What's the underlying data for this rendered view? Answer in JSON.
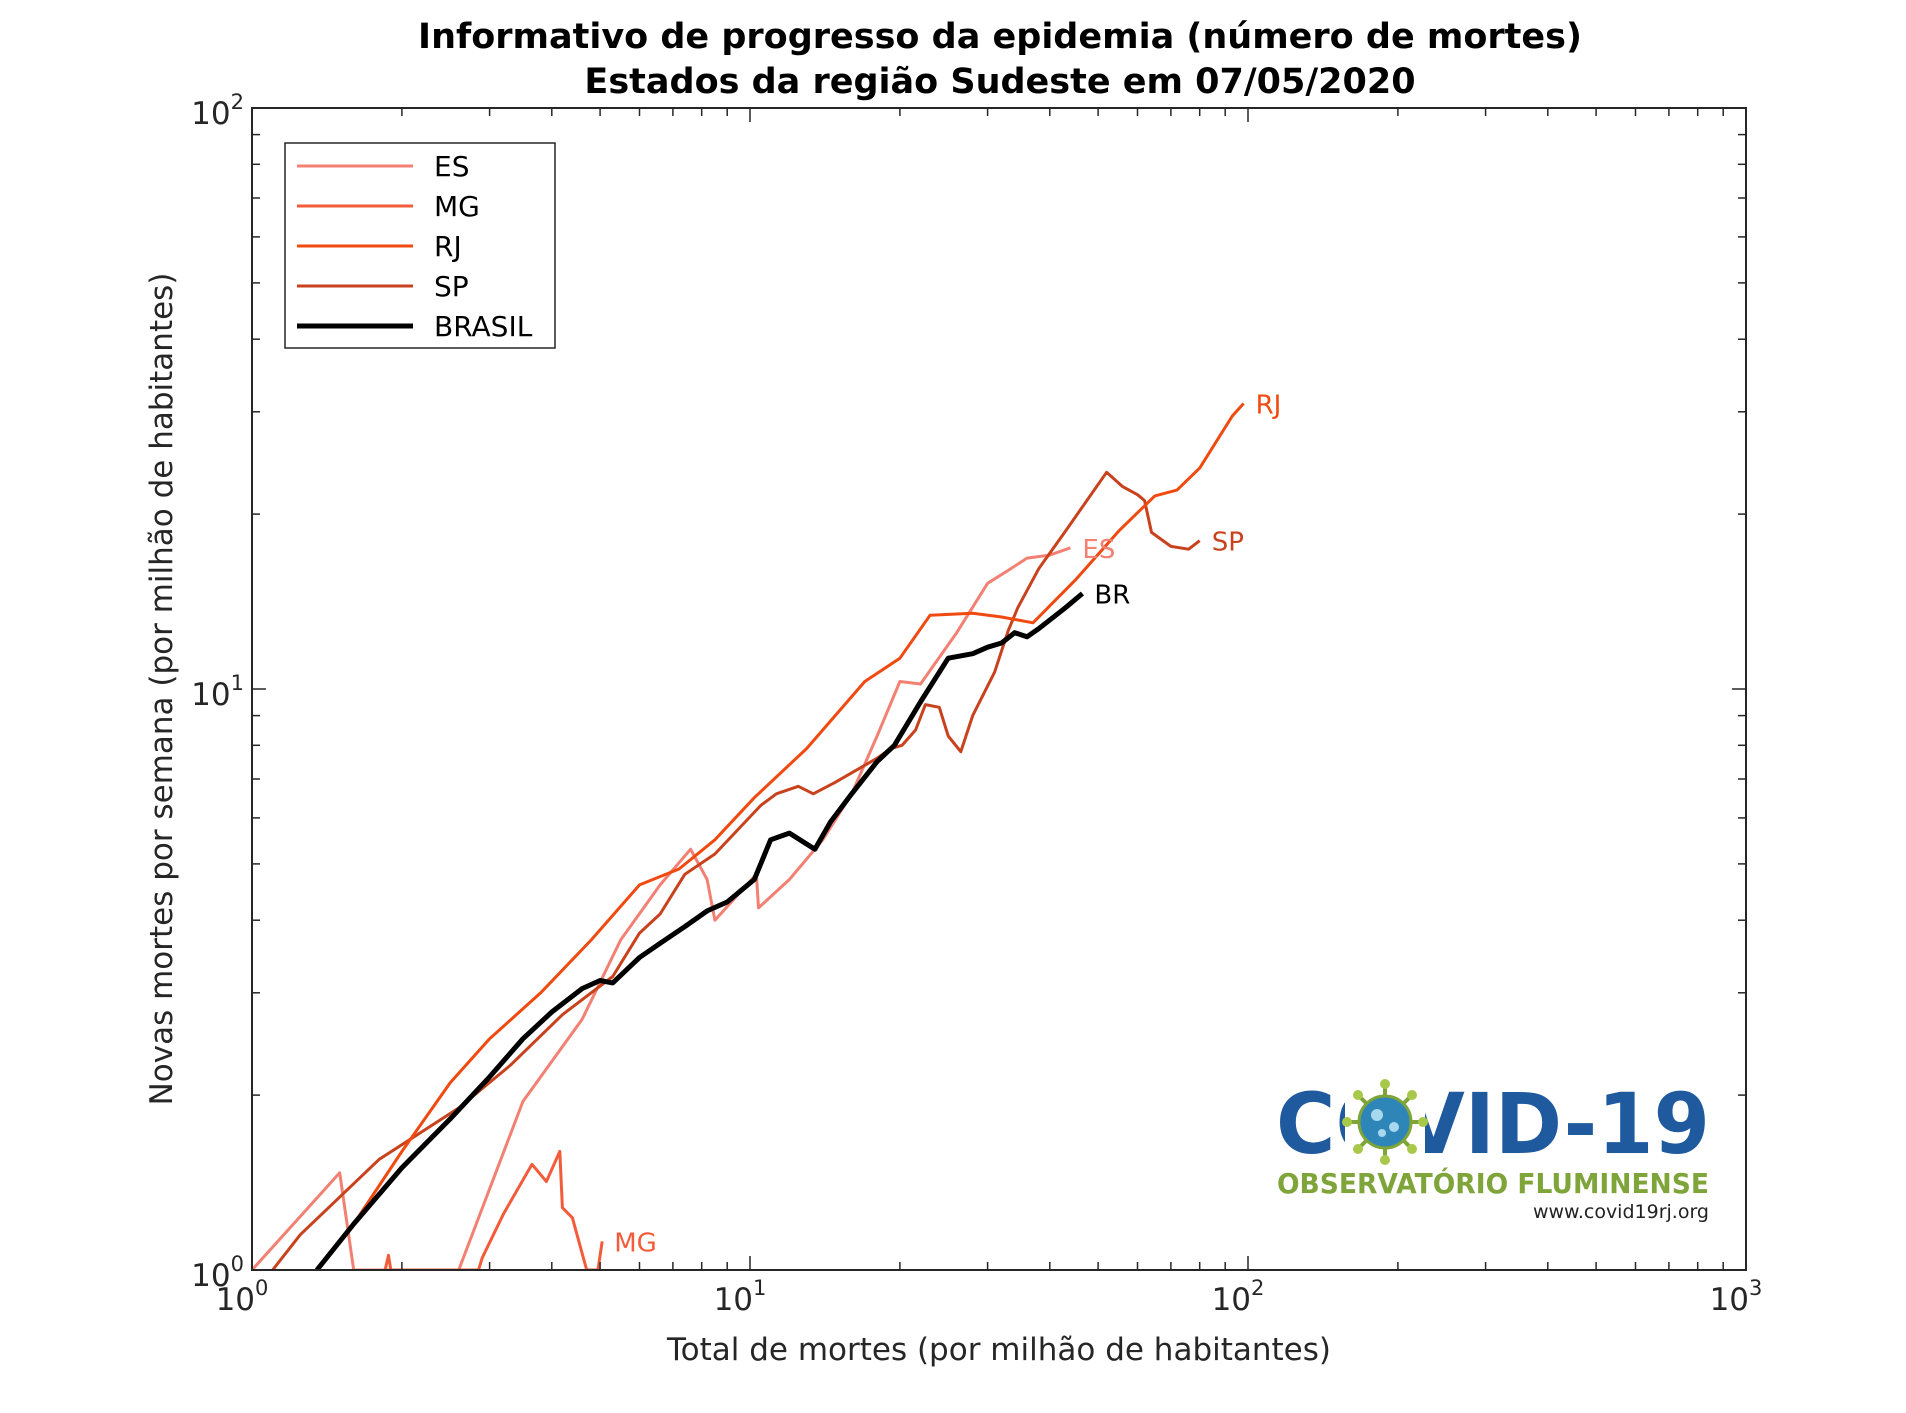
{
  "chart_data": {
    "type": "line",
    "title": "Informativo de progresso da epidemia (número de mortes)",
    "subtitle": "Estados da região Sudeste em 07/05/2020",
    "xlabel": "Total de mortes (por milhão de habitantes)",
    "ylabel": "Novas mortes por semana (por milhão de habitantes)",
    "xscale": "log",
    "yscale": "log",
    "xlim": [
      1,
      1000
    ],
    "ylim": [
      1,
      100
    ],
    "x_ticks": [
      {
        "base": "10",
        "exp": "0",
        "value": 1
      },
      {
        "base": "10",
        "exp": "1",
        "value": 10
      },
      {
        "base": "10",
        "exp": "2",
        "value": 100
      },
      {
        "base": "10",
        "exp": "3",
        "value": 1000
      }
    ],
    "y_ticks": [
      {
        "base": "10",
        "exp": "0",
        "value": 1
      },
      {
        "base": "10",
        "exp": "1",
        "value": 10
      },
      {
        "base": "10",
        "exp": "2",
        "value": 100
      }
    ],
    "grid": false,
    "legend_position": "top-left",
    "series": [
      {
        "name": "ES",
        "end_label": "ES",
        "color": "#f28073",
        "width": 3,
        "points": [
          [
            1.0,
            1.0
          ],
          [
            1.5,
            1.47
          ],
          [
            1.6,
            1.0
          ],
          [
            2.6,
            1.0
          ],
          [
            3.5,
            1.95
          ],
          [
            4.6,
            2.7
          ],
          [
            5.5,
            3.7
          ],
          [
            6.6,
            4.6
          ],
          [
            7.6,
            5.3
          ],
          [
            8.2,
            4.7
          ],
          [
            8.5,
            4.0
          ],
          [
            10.3,
            4.8
          ],
          [
            10.4,
            4.2
          ],
          [
            12.0,
            4.7
          ],
          [
            14.0,
            5.5
          ],
          [
            16.0,
            6.6
          ],
          [
            18.0,
            8.3
          ],
          [
            20.0,
            10.3
          ],
          [
            22.0,
            10.2
          ],
          [
            26.0,
            12.5
          ],
          [
            30.0,
            15.2
          ],
          [
            33.0,
            16.0
          ],
          [
            36.0,
            16.8
          ],
          [
            40.0,
            17.0
          ],
          [
            44.0,
            17.5
          ]
        ]
      },
      {
        "name": "MG",
        "end_label": "MG",
        "color": "#f25c3a",
        "width": 3,
        "points": [
          [
            1.85,
            1.0
          ],
          [
            1.88,
            1.06
          ],
          [
            1.9,
            1.0
          ],
          [
            2.85,
            1.0
          ],
          [
            2.9,
            1.05
          ],
          [
            3.2,
            1.25
          ],
          [
            3.65,
            1.52
          ],
          [
            3.9,
            1.42
          ],
          [
            4.15,
            1.6
          ],
          [
            4.2,
            1.28
          ],
          [
            4.4,
            1.23
          ],
          [
            4.7,
            1.0
          ],
          [
            4.95,
            1.0
          ],
          [
            5.05,
            1.12
          ]
        ]
      },
      {
        "name": "RJ",
        "end_label": "RJ",
        "color": "#f04a10",
        "width": 3,
        "points": [
          [
            1.6,
            1.2
          ],
          [
            2.0,
            1.6
          ],
          [
            2.5,
            2.1
          ],
          [
            3.0,
            2.5
          ],
          [
            3.8,
            3.0
          ],
          [
            4.8,
            3.7
          ],
          [
            6.0,
            4.6
          ],
          [
            7.2,
            4.9
          ],
          [
            8.5,
            5.5
          ],
          [
            10.2,
            6.5
          ],
          [
            13.0,
            7.9
          ],
          [
            17.0,
            10.3
          ],
          [
            20.0,
            11.3
          ],
          [
            23.0,
            13.4
          ],
          [
            28.0,
            13.5
          ],
          [
            32.0,
            13.3
          ],
          [
            37.0,
            13.0
          ],
          [
            45.0,
            15.4
          ],
          [
            55.0,
            18.7
          ],
          [
            65.0,
            21.5
          ],
          [
            72.0,
            22.0
          ],
          [
            80.0,
            24.0
          ],
          [
            93.0,
            29.5
          ],
          [
            98.0,
            31.0
          ]
        ]
      },
      {
        "name": "SP",
        "end_label": "SP",
        "color": "#c8421e",
        "width": 3,
        "points": [
          [
            1.1,
            1.0
          ],
          [
            1.25,
            1.15
          ],
          [
            1.8,
            1.55
          ],
          [
            2.6,
            1.9
          ],
          [
            3.3,
            2.25
          ],
          [
            4.2,
            2.75
          ],
          [
            5.3,
            3.2
          ],
          [
            6.0,
            3.8
          ],
          [
            6.6,
            4.1
          ],
          [
            7.4,
            4.8
          ],
          [
            8.5,
            5.2
          ],
          [
            10.5,
            6.3
          ],
          [
            11.3,
            6.6
          ],
          [
            12.5,
            6.8
          ],
          [
            13.4,
            6.6
          ],
          [
            14.8,
            6.9
          ],
          [
            18.0,
            7.6
          ],
          [
            19.2,
            7.9
          ],
          [
            20.2,
            8.0
          ],
          [
            21.5,
            8.5
          ],
          [
            22.5,
            9.4
          ],
          [
            24.0,
            9.3
          ],
          [
            25.0,
            8.3
          ],
          [
            26.5,
            7.8
          ],
          [
            28.0,
            9.0
          ],
          [
            31.0,
            10.7
          ],
          [
            33.0,
            12.6
          ],
          [
            34.5,
            13.8
          ],
          [
            38.0,
            16.1
          ],
          [
            43.0,
            18.7
          ],
          [
            52.0,
            23.6
          ],
          [
            56.0,
            22.3
          ],
          [
            60.0,
            21.6
          ],
          [
            62.0,
            21.1
          ],
          [
            64.0,
            18.6
          ],
          [
            70.0,
            17.6
          ],
          [
            76.0,
            17.4
          ],
          [
            80.0,
            18.0
          ]
        ]
      },
      {
        "name": "BRASIL",
        "end_label": "BR",
        "color": "#000000",
        "width": 5,
        "points": [
          [
            1.35,
            1.0
          ],
          [
            1.6,
            1.2
          ],
          [
            2.0,
            1.5
          ],
          [
            2.5,
            1.82
          ],
          [
            3.0,
            2.15
          ],
          [
            3.5,
            2.5
          ],
          [
            4.0,
            2.78
          ],
          [
            4.6,
            3.05
          ],
          [
            5.0,
            3.15
          ],
          [
            5.3,
            3.12
          ],
          [
            6.0,
            3.45
          ],
          [
            6.6,
            3.65
          ],
          [
            7.4,
            3.9
          ],
          [
            8.2,
            4.15
          ],
          [
            9.0,
            4.3
          ],
          [
            10.2,
            4.7
          ],
          [
            11.0,
            5.5
          ],
          [
            12.0,
            5.65
          ],
          [
            13.5,
            5.3
          ],
          [
            14.5,
            5.9
          ],
          [
            16.0,
            6.6
          ],
          [
            18.0,
            7.5
          ],
          [
            19.5,
            8.0
          ],
          [
            22.0,
            9.5
          ],
          [
            25.0,
            11.3
          ],
          [
            28.0,
            11.5
          ],
          [
            30.0,
            11.8
          ],
          [
            32.0,
            12.0
          ],
          [
            34.0,
            12.5
          ],
          [
            36.0,
            12.3
          ],
          [
            38.0,
            12.7
          ],
          [
            43.0,
            13.8
          ],
          [
            46.5,
            14.6
          ]
        ]
      }
    ]
  },
  "logo": {
    "title": "COVID-19",
    "subtitle": "OBSERVATÓRIO FLUMINENSE",
    "url": "www.covid19rj.org"
  }
}
